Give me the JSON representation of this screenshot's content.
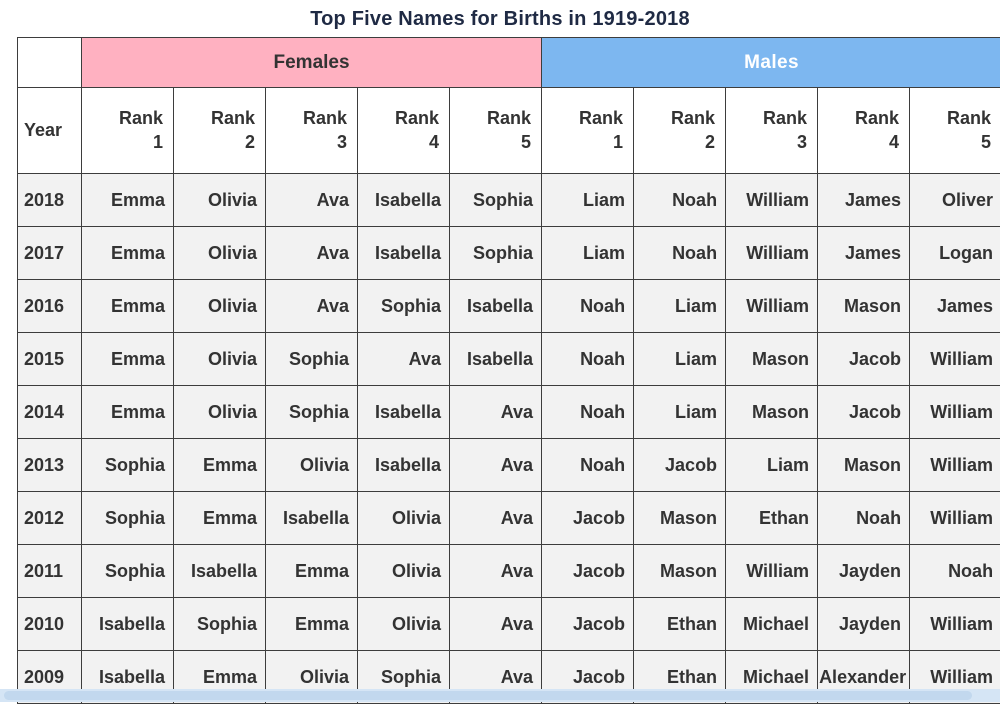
{
  "chart_data": {
    "type": "table",
    "title": "Top Five Names for Births in 1919-2018",
    "year_header": "Year",
    "group_headers": {
      "females": "Females",
      "males": "Males"
    },
    "rank_word": "Rank",
    "rank_numbers": [
      "1",
      "2",
      "3",
      "4",
      "5"
    ],
    "rows": [
      {
        "year": "2018",
        "females": [
          "Emma",
          "Olivia",
          "Ava",
          "Isabella",
          "Sophia"
        ],
        "males": [
          "Liam",
          "Noah",
          "William",
          "James",
          "Oliver"
        ]
      },
      {
        "year": "2017",
        "females": [
          "Emma",
          "Olivia",
          "Ava",
          "Isabella",
          "Sophia"
        ],
        "males": [
          "Liam",
          "Noah",
          "William",
          "James",
          "Logan"
        ]
      },
      {
        "year": "2016",
        "females": [
          "Emma",
          "Olivia",
          "Ava",
          "Sophia",
          "Isabella"
        ],
        "males": [
          "Noah",
          "Liam",
          "William",
          "Mason",
          "James"
        ]
      },
      {
        "year": "2015",
        "females": [
          "Emma",
          "Olivia",
          "Sophia",
          "Ava",
          "Isabella"
        ],
        "males": [
          "Noah",
          "Liam",
          "Mason",
          "Jacob",
          "William"
        ]
      },
      {
        "year": "2014",
        "females": [
          "Emma",
          "Olivia",
          "Sophia",
          "Isabella",
          "Ava"
        ],
        "males": [
          "Noah",
          "Liam",
          "Mason",
          "Jacob",
          "William"
        ]
      },
      {
        "year": "2013",
        "females": [
          "Sophia",
          "Emma",
          "Olivia",
          "Isabella",
          "Ava"
        ],
        "males": [
          "Noah",
          "Jacob",
          "Liam",
          "Mason",
          "William"
        ]
      },
      {
        "year": "2012",
        "females": [
          "Sophia",
          "Emma",
          "Isabella",
          "Olivia",
          "Ava"
        ],
        "males": [
          "Jacob",
          "Mason",
          "Ethan",
          "Noah",
          "William"
        ]
      },
      {
        "year": "2011",
        "females": [
          "Sophia",
          "Isabella",
          "Emma",
          "Olivia",
          "Ava"
        ],
        "males": [
          "Jacob",
          "Mason",
          "William",
          "Jayden",
          "Noah"
        ]
      },
      {
        "year": "2010",
        "females": [
          "Isabella",
          "Sophia",
          "Emma",
          "Olivia",
          "Ava"
        ],
        "males": [
          "Jacob",
          "Ethan",
          "Michael",
          "Jayden",
          "William"
        ]
      },
      {
        "year": "2009",
        "females": [
          "Isabella",
          "Emma",
          "Olivia",
          "Sophia",
          "Ava"
        ],
        "males": [
          "Jacob",
          "Ethan",
          "Michael",
          "Alexander",
          "William"
        ]
      }
    ]
  },
  "colors": {
    "title_text": "#1f2a44",
    "females_header_bg": "#ffb1c1",
    "females_header_text": "#333333",
    "males_header_bg": "#7db7f0",
    "males_header_text": "#ffffff",
    "border": "#3d3d3d",
    "row_bg": "#f2f2f2",
    "scrollbar_bg": "#d5e5f5"
  }
}
